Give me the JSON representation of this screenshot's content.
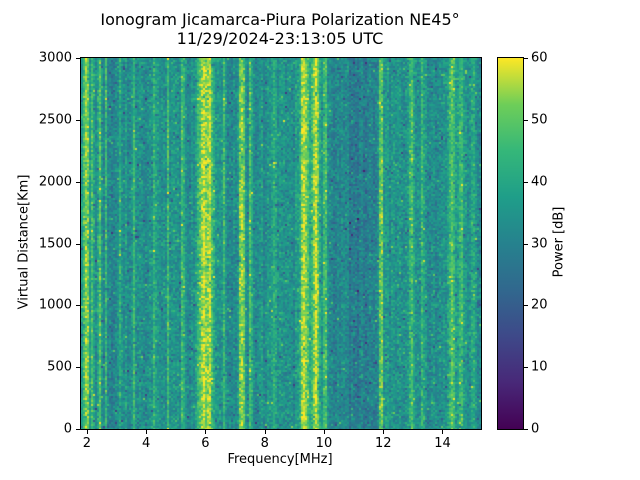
{
  "figure": {
    "background_color": "#ffffff",
    "text_color": "#000000"
  },
  "chart_data": {
    "type": "heatmap",
    "title": "Ionogram Jicamarca-Piura Polarization NE45°",
    "subtitle": "11/29/2024-23:13:05 UTC",
    "xlabel": "Frequency[MHz]",
    "ylabel": "Virtual Distance[Km]",
    "colorbar_label": "Power [dB]",
    "xlim": [
      1.8,
      15.3
    ],
    "ylim": [
      0,
      3000
    ],
    "clim": [
      0,
      60
    ],
    "x_ticks": [
      2,
      4,
      6,
      8,
      10,
      12,
      14
    ],
    "y_ticks": [
      0,
      500,
      1000,
      1500,
      2000,
      2500,
      3000
    ],
    "colorbar_ticks": [
      0,
      10,
      20,
      30,
      40,
      50,
      60
    ],
    "colormap": "viridis",
    "viridis_stops": [
      [
        0.0,
        "#440154"
      ],
      [
        0.125,
        "#482878"
      ],
      [
        0.25,
        "#3e4989"
      ],
      [
        0.375,
        "#31688e"
      ],
      [
        0.5,
        "#26828e"
      ],
      [
        0.625,
        "#1f9e89"
      ],
      [
        0.75,
        "#35b779"
      ],
      [
        0.875,
        "#6ece58"
      ],
      [
        1.0,
        "#fde725"
      ]
    ],
    "background_power": {
      "mean": 34,
      "std": 4.5
    },
    "noise_seed": 42,
    "bright_bands_mhz": [
      {
        "center": 1.95,
        "width": 0.12,
        "power": 57
      },
      {
        "center": 2.15,
        "width": 0.06,
        "power": 48
      },
      {
        "center": 2.4,
        "width": 0.06,
        "power": 50
      },
      {
        "center": 2.6,
        "width": 0.05,
        "power": 46
      },
      {
        "center": 3.1,
        "width": 0.05,
        "power": 44
      },
      {
        "center": 3.55,
        "width": 0.05,
        "power": 44
      },
      {
        "center": 4.25,
        "width": 0.08,
        "power": 47
      },
      {
        "center": 4.7,
        "width": 0.05,
        "power": 44
      },
      {
        "center": 5.2,
        "width": 0.06,
        "power": 46
      },
      {
        "center": 5.85,
        "width": 0.2,
        "power": 54
      },
      {
        "center": 6.1,
        "width": 0.2,
        "power": 56
      },
      {
        "center": 6.6,
        "width": 0.07,
        "power": 48
      },
      {
        "center": 7.2,
        "width": 0.15,
        "power": 57
      },
      {
        "center": 7.5,
        "width": 0.07,
        "power": 49
      },
      {
        "center": 8.3,
        "width": 0.06,
        "power": 44
      },
      {
        "center": 9.3,
        "width": 0.25,
        "power": 55
      },
      {
        "center": 9.7,
        "width": 0.2,
        "power": 56
      },
      {
        "center": 10.0,
        "width": 0.1,
        "power": 51
      },
      {
        "center": 11.9,
        "width": 0.09,
        "power": 58
      },
      {
        "center": 12.5,
        "width": 0.05,
        "power": 44
      },
      {
        "center": 12.9,
        "width": 0.12,
        "power": 48
      },
      {
        "center": 13.3,
        "width": 0.07,
        "power": 46
      },
      {
        "center": 14.3,
        "width": 0.15,
        "power": 46
      },
      {
        "center": 14.6,
        "width": 0.1,
        "power": 46
      },
      {
        "center": 15.0,
        "width": 0.08,
        "power": 45
      }
    ],
    "dark_bands_mhz": [
      {
        "center": 10.7,
        "width": 1.0,
        "drop": 4
      },
      {
        "center": 11.3,
        "width": 0.6,
        "drop": 3
      },
      {
        "center": 2.8,
        "width": 0.4,
        "drop": 2
      },
      {
        "center": 13.8,
        "width": 0.3,
        "drop": 2
      }
    ]
  }
}
